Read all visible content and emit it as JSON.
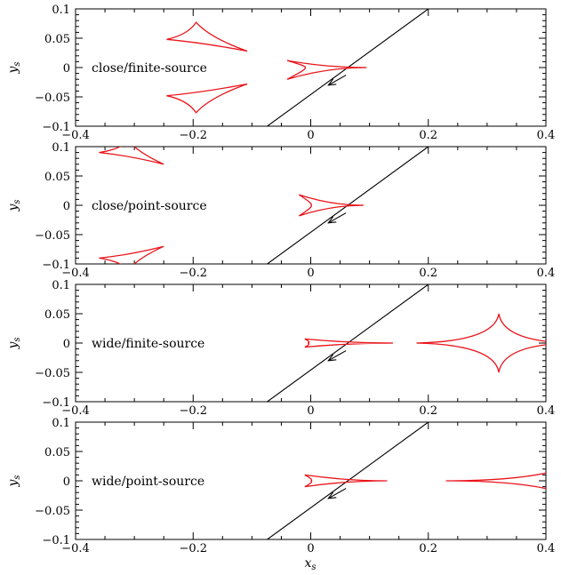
{
  "chart_data": {
    "type": "line",
    "xlabel": "x",
    "xlabel_sub": "s",
    "ylabel": "y",
    "ylabel_sub": "s",
    "xlim": [
      -0.4,
      0.4
    ],
    "ylim": [
      -0.1,
      0.1
    ],
    "x_ticks": [
      -0.4,
      -0.2,
      0,
      0.2,
      0.4
    ],
    "x_tick_labels": [
      "−0.4",
      "−0.2",
      "0",
      "0.2",
      "0.4"
    ],
    "y_ticks": [
      -0.1,
      -0.05,
      0,
      0.05,
      0.1
    ],
    "y_tick_labels": [
      "−0.1",
      "−0.05",
      "0",
      "0.05",
      "0.1"
    ],
    "grid": false,
    "colors": {
      "caustic": "#e8141a",
      "trajectory": "#000000"
    },
    "trajectory": {
      "line": [
        [
          -0.074,
          -0.1
        ],
        [
          0.2,
          0.1
        ]
      ],
      "arrow_from": [
        0.06,
        -0.013
      ],
      "arrow_to": [
        0.03,
        -0.03
      ]
    },
    "panels": [
      {
        "label": "close/finite-source",
        "caustics": [
          {
            "shape": "planetary",
            "cx": -0.195,
            "cy": 0.048,
            "cusps": [
              [
                -0.245,
                0.048
              ],
              [
                -0.195,
                0.077
              ],
              [
                -0.108,
                0.028
              ]
            ]
          },
          {
            "shape": "planetary",
            "cx": -0.195,
            "cy": -0.048,
            "cusps": [
              [
                -0.245,
                -0.048
              ],
              [
                -0.195,
                -0.077
              ],
              [
                -0.108,
                -0.028
              ]
            ]
          },
          {
            "shape": "central",
            "cusps": [
              [
                -0.04,
                0.012
              ],
              [
                -0.01,
                0.0
              ],
              [
                -0.04,
                -0.02
              ],
              [
                0.095,
                0.0
              ]
            ]
          }
        ]
      },
      {
        "label": "close/point-source",
        "caustics": [
          {
            "shape": "planetary",
            "cx": -0.31,
            "cy": 0.09,
            "cusps": [
              [
                -0.36,
                0.09
              ],
              [
                -0.31,
                0.11
              ],
              [
                -0.25,
                0.07
              ]
            ]
          },
          {
            "shape": "planetary",
            "cx": -0.31,
            "cy": -0.09,
            "cusps": [
              [
                -0.36,
                -0.09
              ],
              [
                -0.31,
                -0.11
              ],
              [
                -0.25,
                -0.07
              ]
            ]
          },
          {
            "shape": "central",
            "cusps": [
              [
                -0.02,
                0.018
              ],
              [
                0.0,
                0.0
              ],
              [
                -0.02,
                -0.018
              ],
              [
                0.09,
                0.0
              ]
            ]
          }
        ]
      },
      {
        "label": "wide/finite-source",
        "caustics": [
          {
            "shape": "central",
            "cusps": [
              [
                -0.01,
                0.007
              ],
              [
                -0.005,
                0.0
              ],
              [
                -0.01,
                -0.007
              ],
              [
                0.14,
                0.0
              ]
            ]
          },
          {
            "shape": "planetary-wide",
            "cusps": [
              [
                0.32,
                0.05
              ],
              [
                0.32,
                -0.05
              ],
              [
                0.18,
                0.0
              ],
              [
                0.44,
                0.0
              ]
            ]
          }
        ]
      },
      {
        "label": "wide/point-source",
        "caustics": [
          {
            "shape": "central",
            "cusps": [
              [
                -0.01,
                0.01
              ],
              [
                0.0,
                0.0
              ],
              [
                -0.01,
                -0.01
              ],
              [
                0.13,
                0.0
              ]
            ]
          },
          {
            "shape": "planetary-wide",
            "cusps": [
              [
                0.23,
                0.0
              ],
              [
                0.42,
                0.018
              ],
              [
                0.42,
                -0.018
              ]
            ]
          }
        ]
      }
    ]
  }
}
